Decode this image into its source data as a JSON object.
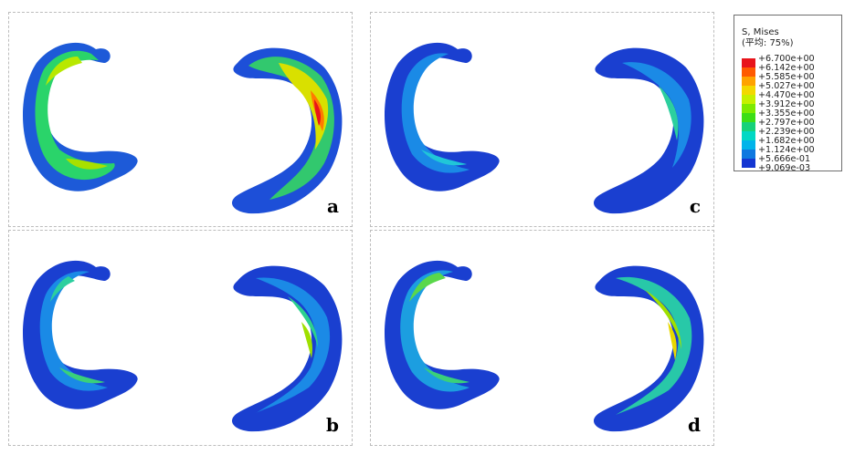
{
  "panels": [
    {
      "id": "a",
      "label": "a"
    },
    {
      "id": "b",
      "label": "b"
    },
    {
      "id": "c",
      "label": "c"
    },
    {
      "id": "d",
      "label": "d"
    }
  ],
  "legend": {
    "title": "S, Mises",
    "subtitle": "(平均: 75%)",
    "ticks": [
      "+6.700e+00",
      "+6.142e+00",
      "+5.585e+00",
      "+5.027e+00",
      "+4.470e+00",
      "+3.912e+00",
      "+3.355e+00",
      "+2.797e+00",
      "+2.239e+00",
      "+1.682e+00",
      "+1.124e+00",
      "+5.666e-01",
      "+9.069e-03"
    ],
    "colors": [
      "#e8141b",
      "#ff5a00",
      "#ffa200",
      "#f3d800",
      "#c6f000",
      "#7eea00",
      "#3cde16",
      "#16d27a",
      "#00d8c4",
      "#00b4ea",
      "#0e78e0",
      "#1436d2",
      "#1010c8"
    ]
  }
}
